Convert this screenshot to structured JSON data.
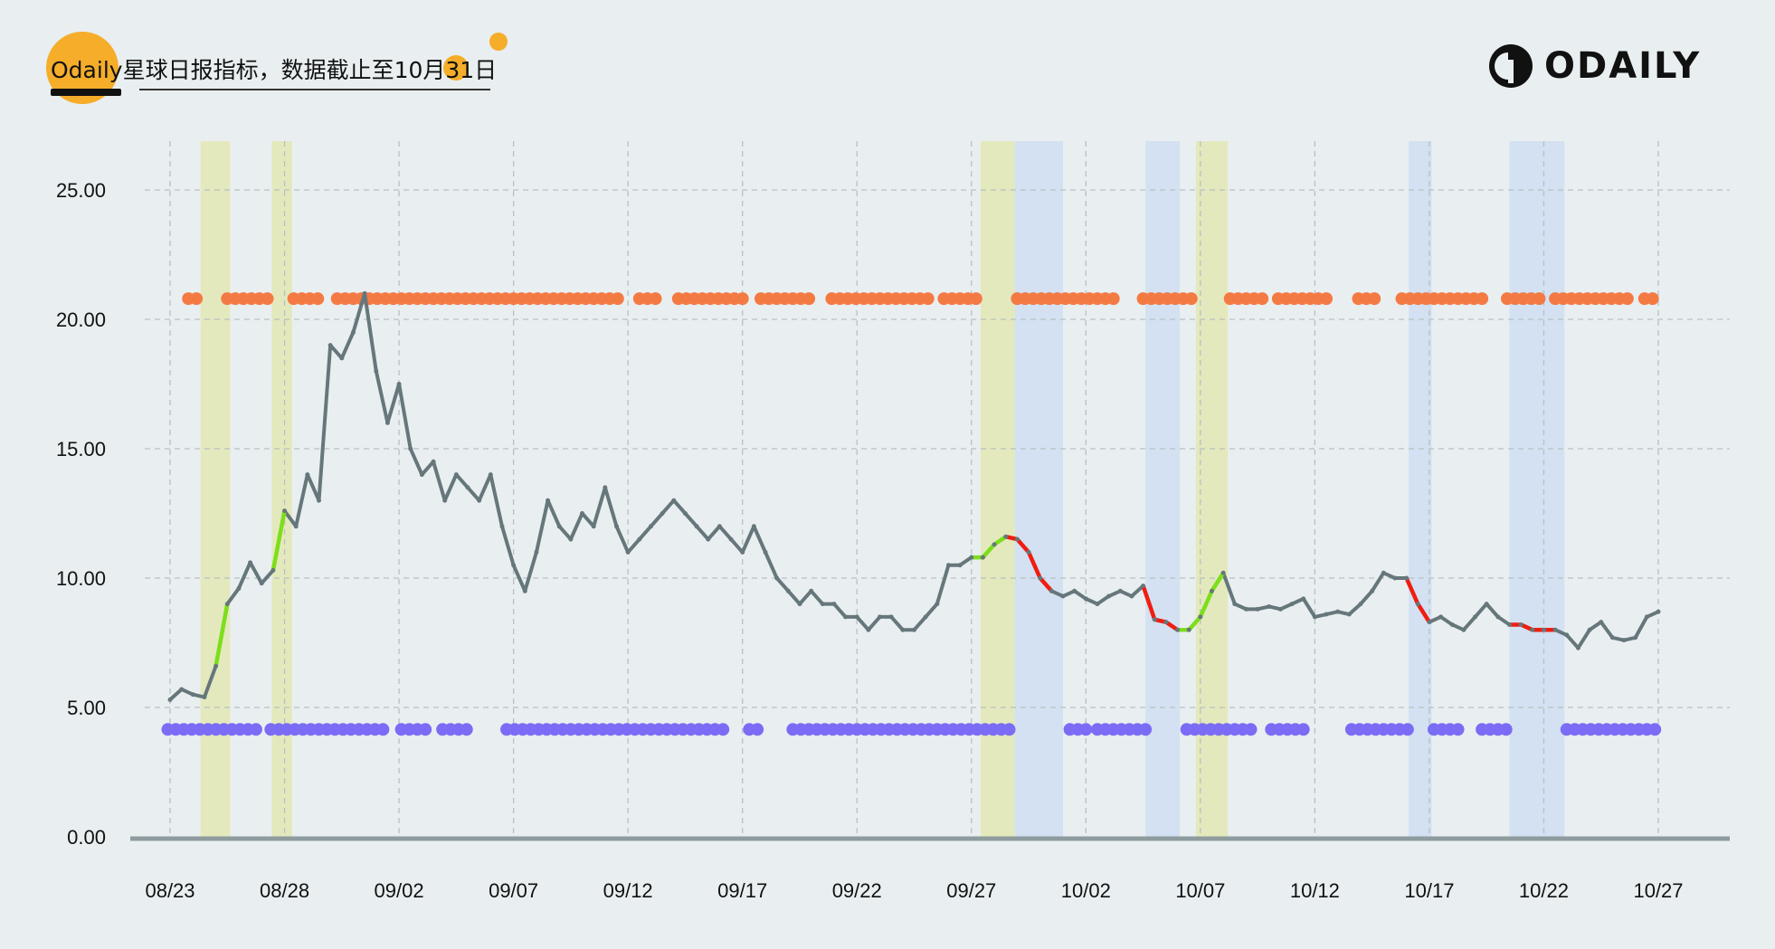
{
  "header": {
    "title_brand": "Odaily",
    "title_rest": "星球日报指标，数据截止至10月31日",
    "logo_text": "ODAILY"
  },
  "colors": {
    "background": "#e9eff0",
    "price_line": "#66777c",
    "green_segment": "#7ddf1a",
    "red_segment": "#f01d10",
    "orange_dots": "#f47a44",
    "blue_dots": "#7b6cf5",
    "yellow_band": "#e4e9bd",
    "blue_band": "#d3e1f2",
    "accent": "#f5ad2a"
  },
  "chart_data": {
    "type": "line",
    "title": "",
    "xlabel": "",
    "ylabel": "",
    "start_date": "08/23",
    "x_unit": "days since 08/23",
    "xlim": [
      -1.2,
      66.5
    ],
    "ylim": [
      0,
      26
    ],
    "y_ticks": [
      "0.00",
      "5.00",
      "10.00",
      "15.00",
      "20.00",
      "25.00"
    ],
    "y_tick_values": [
      0,
      5,
      10,
      15,
      20,
      25
    ],
    "x_ticks": [
      "08/23",
      "08/28",
      "09/02",
      "09/07",
      "09/12",
      "09/17",
      "09/22",
      "09/27",
      "10/02",
      "10/07",
      "10/12",
      "10/17",
      "10/22",
      "10/27"
    ],
    "x_tick_values": [
      0,
      5,
      10,
      15,
      20,
      25,
      30,
      35,
      40,
      45,
      50,
      55,
      60,
      65
    ],
    "grid": true,
    "series": [
      {
        "name": "price",
        "x": [
          0,
          0.5,
          1,
          1.5,
          2,
          2.5,
          3,
          3.5,
          4,
          4.5,
          5,
          5.5,
          6,
          6.5,
          7,
          7.5,
          8,
          8.5,
          9,
          9.5,
          10,
          10.5,
          11,
          11.5,
          12,
          12.5,
          13,
          13.5,
          14,
          14.5,
          15,
          15.5,
          16,
          16.5,
          17,
          17.5,
          18,
          18.5,
          19,
          19.5,
          20,
          20.5,
          21,
          21.5,
          22,
          22.5,
          23,
          23.5,
          24,
          24.5,
          25,
          25.5,
          26,
          26.5,
          27,
          27.5,
          28,
          28.5,
          29,
          29.5,
          30,
          30.5,
          31,
          31.5,
          32,
          32.5,
          33,
          33.5,
          34,
          34.5,
          35,
          35.5,
          36,
          36.5,
          37,
          37.5,
          38,
          38.5,
          39,
          39.5,
          40,
          40.5,
          41,
          41.5,
          42,
          42.5,
          43,
          43.5,
          44,
          44.5,
          45,
          45.5,
          46,
          46.5,
          47,
          47.5,
          48,
          48.5,
          49,
          49.5,
          50,
          50.5,
          51,
          51.5,
          52,
          52.5,
          53,
          53.5,
          54,
          54.5,
          55,
          55.5,
          56,
          56.5,
          57,
          57.5,
          58,
          58.5,
          59,
          59.5,
          60,
          60.5,
          61,
          61.5,
          62,
          62.5,
          63,
          63.5,
          64,
          64.5,
          65
        ],
        "y": [
          5.3,
          5.7,
          5.5,
          5.4,
          6.6,
          9.0,
          9.6,
          10.6,
          9.8,
          10.3,
          12.6,
          12.0,
          14.0,
          13.0,
          19.0,
          18.5,
          19.5,
          21.0,
          18.0,
          16.0,
          17.5,
          15.0,
          14.0,
          14.5,
          13.0,
          14.0,
          13.5,
          13.0,
          14.0,
          12.0,
          10.5,
          9.5,
          11.0,
          13.0,
          12.0,
          11.5,
          12.5,
          12.0,
          13.5,
          12.0,
          11.0,
          11.5,
          12.0,
          12.5,
          13.0,
          12.5,
          12.0,
          11.5,
          12.0,
          11.5,
          11.0,
          12.0,
          11.0,
          10.0,
          9.5,
          9.0,
          9.5,
          9.0,
          9.0,
          8.5,
          8.5,
          8.0,
          8.5,
          8.5,
          8.0,
          8.0,
          8.5,
          9.0,
          10.5,
          10.5,
          10.8,
          10.8,
          11.3,
          11.6,
          11.5,
          11.0,
          10.0,
          9.5,
          9.3,
          9.5,
          9.2,
          9.0,
          9.3,
          9.5,
          9.3,
          9.7,
          8.4,
          8.3,
          8.0,
          8.0,
          8.5,
          9.5,
          10.2,
          9.0,
          8.8,
          8.8,
          8.9,
          8.8,
          9.0,
          9.2,
          8.5,
          8.6,
          8.7,
          8.6,
          9.0,
          9.5,
          10.2,
          10.0,
          10.0,
          9.0,
          8.3,
          8.5,
          8.2,
          8.0,
          8.5,
          9.0,
          8.5,
          8.2,
          8.2,
          8.0,
          8.0,
          8.0,
          7.8,
          7.3,
          8.0,
          8.3,
          7.7,
          7.6,
          7.7,
          8.5,
          8.7
        ]
      }
    ],
    "highlight_segments": [
      {
        "color": "green",
        "x_range": [
          2,
          2.5
        ]
      },
      {
        "color": "green",
        "x_range": [
          4.5,
          5
        ]
      },
      {
        "color": "green",
        "x_range": [
          35,
          36.5
        ]
      },
      {
        "color": "red",
        "x_range": [
          36.5,
          38.5
        ]
      },
      {
        "color": "red",
        "x_range": [
          42.5,
          44
        ]
      },
      {
        "color": "green",
        "x_range": [
          44,
          46
        ]
      },
      {
        "color": "red",
        "x_range": [
          54,
          55
        ]
      },
      {
        "color": "red",
        "x_range": [
          58.5,
          60.5
        ]
      }
    ],
    "orange_dot_level": 20.8,
    "orange_dot_ranges": [
      [
        0.8,
        1.4
      ],
      [
        2.5,
        3.0
      ],
      [
        3.2,
        4.3
      ],
      [
        5.4,
        6.5
      ],
      [
        7.3,
        19.7
      ],
      [
        20.5,
        21.5
      ],
      [
        22.2,
        25.2
      ],
      [
        25.8,
        28.2
      ],
      [
        28.9,
        33.1
      ],
      [
        33.8,
        35.3
      ],
      [
        37.0,
        41.2
      ],
      [
        42.5,
        44.7
      ],
      [
        46.3,
        47.9
      ],
      [
        48.4,
        50.6
      ],
      [
        51.9,
        52.6
      ],
      [
        53.8,
        57.5
      ],
      [
        58.4,
        60.0
      ],
      [
        60.5,
        63.7
      ],
      [
        64.4,
        65.0
      ]
    ],
    "blue_dot_level": 4.15,
    "blue_dot_ranges": [
      [
        -0.1,
        4.0
      ],
      [
        4.4,
        9.6
      ],
      [
        10.1,
        11.3
      ],
      [
        11.9,
        13.1
      ],
      [
        14.7,
        24.2
      ],
      [
        25.3,
        25.9
      ],
      [
        27.2,
        36.9
      ],
      [
        39.3,
        40.0
      ],
      [
        40.5,
        42.6
      ],
      [
        44.4,
        47.4
      ],
      [
        48.1,
        49.6
      ],
      [
        51.6,
        54.1
      ],
      [
        55.2,
        56.3
      ],
      [
        57.3,
        58.6
      ],
      [
        61.0,
        65.0
      ]
    ],
    "yellow_bands": [
      [
        1.33,
        2.62
      ],
      [
        4.44,
        5.33
      ],
      [
        35.4,
        36.9
      ],
      [
        44.8,
        46.2
      ]
    ],
    "blue_bands": [
      [
        36.9,
        39.0
      ],
      [
        42.6,
        44.1
      ],
      [
        54.1,
        55.1
      ],
      [
        58.5,
        60.9
      ]
    ]
  }
}
